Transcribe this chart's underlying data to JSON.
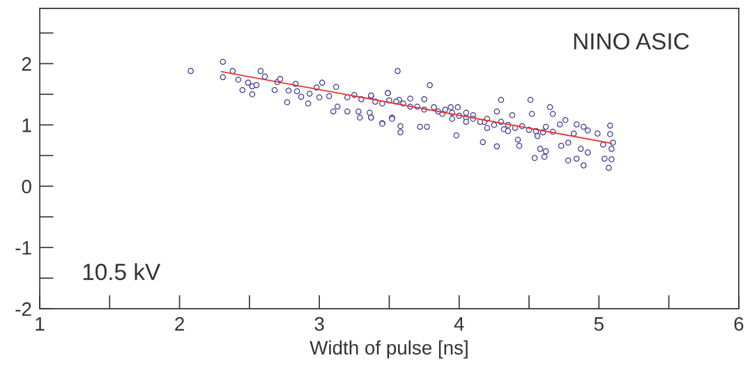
{
  "chart_data": {
    "type": "scatter",
    "xlabel": "Width of pulse [ns]",
    "annotations": [
      "NINO ASIC",
      "10.5 kV"
    ],
    "xlim": [
      1,
      6
    ],
    "ylim": [
      -2,
      2.9
    ],
    "xticks": [
      1,
      2,
      3,
      4,
      5,
      6
    ],
    "yticks": [
      -2,
      -1,
      0,
      1,
      2
    ],
    "grid": false,
    "legend": false,
    "series": [
      {
        "marker": "circle",
        "color": "#3a3a96",
        "x": [
          2.08,
          2.31,
          2.31,
          2.38,
          2.42,
          2.45,
          2.49,
          2.52,
          2.52,
          2.55,
          2.58,
          2.61,
          2.68,
          2.7,
          2.72,
          2.77,
          2.78,
          2.83,
          2.84,
          2.87,
          2.92,
          2.93,
          2.98,
          3.0,
          3.02,
          3.07,
          3.1,
          3.12,
          3.13,
          3.2,
          3.25,
          3.28,
          3.29,
          3.36,
          3.37,
          3.37,
          3.45,
          3.49,
          3.52,
          3.56,
          3.79,
          3.37,
          3.49,
          3.37,
          3.45,
          3.52,
          3.58,
          3.58,
          3.57,
          3.65,
          3.72,
          3.77,
          3.75,
          3.82,
          3.88,
          3.94,
          3.99,
          3.98,
          4.05,
          4.1,
          4.17,
          4.27,
          4.3,
          4.27,
          4.18,
          4.32,
          4.38,
          4.42,
          4.43,
          4.51,
          4.52,
          4.54,
          4.58,
          4.61,
          4.62,
          4.65,
          4.67,
          4.62,
          4.72,
          4.73,
          4.76,
          4.78,
          4.84,
          4.84,
          4.87,
          4.89,
          4.89,
          4.92,
          4.92,
          4.99,
          5.04,
          5.07,
          5.08,
          5.08,
          5.1,
          5.09,
          5.09,
          5.03,
          4.78,
          4.82,
          4.56,
          4.67,
          3.85,
          3.9,
          3.95,
          4.0,
          4.05,
          4.1,
          4.15,
          4.2,
          4.25,
          4.3,
          4.35,
          4.4,
          4.45,
          4.5,
          3.7,
          3.75,
          3.6,
          3.65,
          3.55,
          3.5,
          3.45,
          3.4,
          3.3,
          3.2,
          4.55,
          4.6,
          4.05,
          3.95,
          4.2,
          4.35
        ],
        "values": [
          1.88,
          2.03,
          1.78,
          1.88,
          1.74,
          1.57,
          1.69,
          1.63,
          1.5,
          1.65,
          1.88,
          1.79,
          1.57,
          1.7,
          1.75,
          1.37,
          1.56,
          1.67,
          1.55,
          1.46,
          1.35,
          1.51,
          1.61,
          1.45,
          1.69,
          1.47,
          1.22,
          1.62,
          1.3,
          1.22,
          1.49,
          1.22,
          1.12,
          1.2,
          1.47,
          1.12,
          1.03,
          1.52,
          1.12,
          1.88,
          1.65,
          1.48,
          1.52,
          1.12,
          1.02,
          1.1,
          0.98,
          0.88,
          1.41,
          1.43,
          0.97,
          0.97,
          1.42,
          1.29,
          1.18,
          1.29,
          1.29,
          0.83,
          1.12,
          1.16,
          0.72,
          0.65,
          1.41,
          1.22,
          1.05,
          0.93,
          1.16,
          0.76,
          0.66,
          1.41,
          1.18,
          0.46,
          0.61,
          0.48,
          0.57,
          1.29,
          1.18,
          0.97,
          1.01,
          0.66,
          1.08,
          0.42,
          1.01,
          0.45,
          0.61,
          0.97,
          0.34,
          0.91,
          0.55,
          0.86,
          0.45,
          0.3,
          0.99,
          0.85,
          0.71,
          0.61,
          0.44,
          0.68,
          0.71,
          0.86,
          0.82,
          0.89,
          1.22,
          1.25,
          1.2,
          1.15,
          1.2,
          1.1,
          1.05,
          1.1,
          1.0,
          1.05,
          1.0,
          0.95,
          0.98,
          0.92,
          1.3,
          1.25,
          1.35,
          1.3,
          1.38,
          1.4,
          1.35,
          1.38,
          1.42,
          1.45,
          0.9,
          0.88,
          1.05,
          1.1,
          0.95,
          0.9
        ]
      },
      {
        "type": "line",
        "color": "#e8302c",
        "line_style": "solid",
        "x": [
          2.3,
          5.09
        ],
        "values": [
          1.87,
          0.7
        ]
      }
    ]
  }
}
